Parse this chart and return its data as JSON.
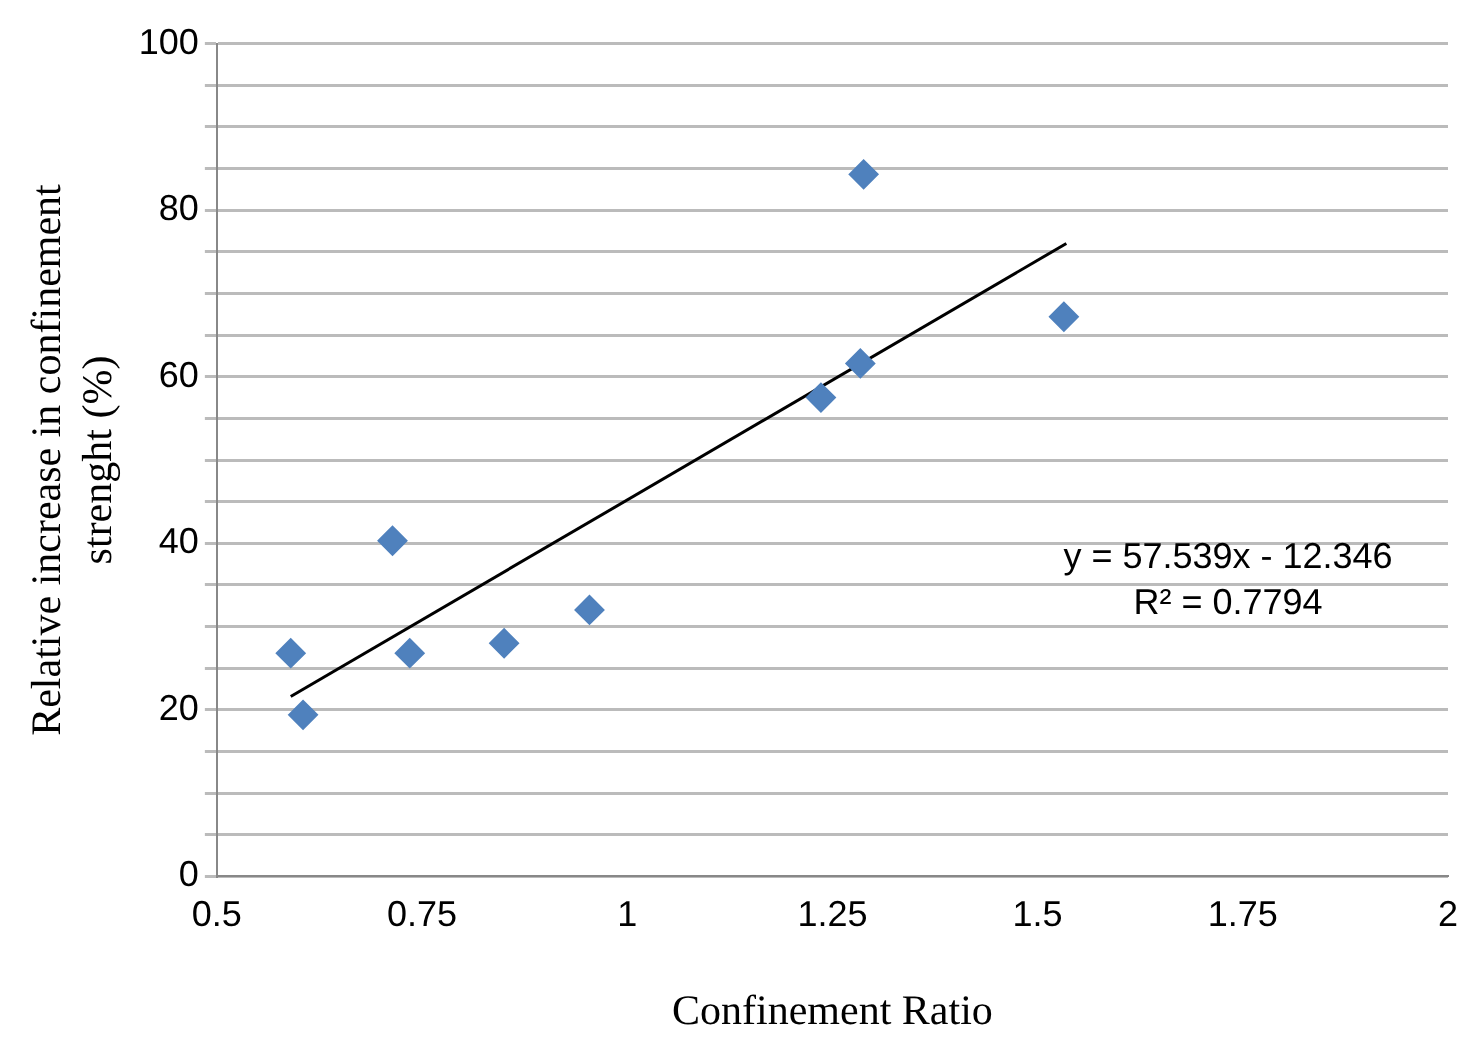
{
  "chart_data": {
    "type": "scatter",
    "xlabel": "Confinement Ratio",
    "ylabel": "Relative increase in confinement strenght (%)",
    "xlim": [
      0.5,
      2
    ],
    "xticks": [
      0.5,
      0.75,
      1,
      1.25,
      1.5,
      1.75,
      2
    ],
    "ylim": [
      0,
      100
    ],
    "yticks": [
      0,
      {
        "value": 5,
        "label": null
      },
      {
        "value": 10,
        "label": null
      },
      {
        "value": 15,
        "label": null
      },
      20,
      {
        "value": 25,
        "label": null
      },
      {
        "value": 30,
        "label": null
      },
      {
        "value": 35,
        "label": null
      },
      40,
      {
        "value": 45,
        "label": null
      },
      {
        "value": 50,
        "label": null
      },
      {
        "value": 55,
        "label": null
      },
      60,
      {
        "value": 65,
        "label": null
      },
      {
        "value": 70,
        "label": null
      },
      {
        "value": 75,
        "label": null
      },
      80,
      {
        "value": 85,
        "label": null
      },
      {
        "value": 90,
        "label": null
      },
      {
        "value": 95,
        "label": null
      },
      100
    ],
    "grid": "y",
    "legend": false,
    "series": [
      {
        "type": "scatter",
        "color": "#4f81bd",
        "marker": "diamond",
        "x": [
          0.59,
          0.605,
          0.714,
          0.735,
          0.85,
          0.954,
          1.236,
          1.284,
          1.288,
          1.532
        ],
        "values": [
          26.8,
          19.4,
          40.3,
          26.8,
          28,
          32,
          57.5,
          61.6,
          84.3,
          67.2
        ]
      },
      {
        "type": "line",
        "color": "#000000",
        "marker": "none",
        "x": [
          0.59,
          1.535
        ],
        "values": [
          21.6,
          76
        ]
      }
    ],
    "annotations": [
      "y = 57.539x - 12.346",
      "R² = 0.7794"
    ]
  }
}
